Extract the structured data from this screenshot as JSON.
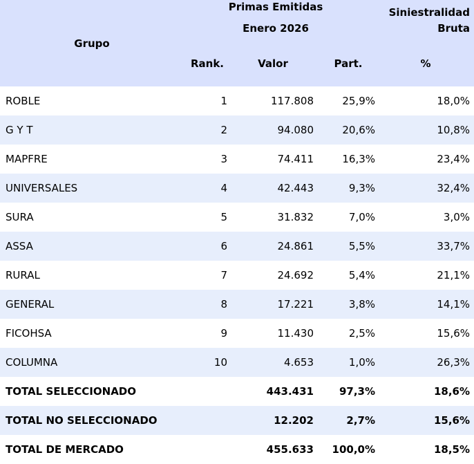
{
  "header": {
    "grupo": "Grupo",
    "primas": "Primas Emitidas",
    "period": "Enero 2026",
    "siniestralidad_line1": "Siniestralidad",
    "siniestralidad_line2": "Bruta",
    "rank": "Rank.",
    "valor": "Valor",
    "part": "Part.",
    "pct": "%"
  },
  "rows": [
    {
      "grupo": "ROBLE",
      "rank": "1",
      "valor": "117.808",
      "part": "25,9%",
      "sin": "18,0%"
    },
    {
      "grupo": "G Y T",
      "rank": "2",
      "valor": "94.080",
      "part": "20,6%",
      "sin": "10,8%"
    },
    {
      "grupo": "MAPFRE",
      "rank": "3",
      "valor": "74.411",
      "part": "16,3%",
      "sin": "23,4%"
    },
    {
      "grupo": "UNIVERSALES",
      "rank": "4",
      "valor": "42.443",
      "part": "9,3%",
      "sin": "32,4%"
    },
    {
      "grupo": "SURA",
      "rank": "5",
      "valor": "31.832",
      "part": "7,0%",
      "sin": "3,0%"
    },
    {
      "grupo": "ASSA",
      "rank": "6",
      "valor": "24.861",
      "part": "5,5%",
      "sin": "33,7%"
    },
    {
      "grupo": "RURAL",
      "rank": "7",
      "valor": "24.692",
      "part": "5,4%",
      "sin": "21,1%"
    },
    {
      "grupo": "GENERAL",
      "rank": "8",
      "valor": "17.221",
      "part": "3,8%",
      "sin": "14,1%"
    },
    {
      "grupo": "FICOHSA",
      "rank": "9",
      "valor": "11.430",
      "part": "2,5%",
      "sin": "15,6%"
    },
    {
      "grupo": "COLUMNA",
      "rank": "10",
      "valor": "4.653",
      "part": "1,0%",
      "sin": "26,3%"
    }
  ],
  "totals": [
    {
      "grupo": "TOTAL SELECCIONADO",
      "valor": "443.431",
      "part": "97,3%",
      "sin": "18,6%"
    },
    {
      "grupo": "TOTAL NO SELECCIONADO",
      "valor": "12.202",
      "part": "2,7%",
      "sin": "15,6%"
    },
    {
      "grupo": "TOTAL DE MERCADO",
      "valor": "455.633",
      "part": "100,0%",
      "sin": "18,5%"
    }
  ],
  "colors": {
    "header_bg": "#d9e1fd",
    "stripe_bg": "#e7eefc"
  }
}
